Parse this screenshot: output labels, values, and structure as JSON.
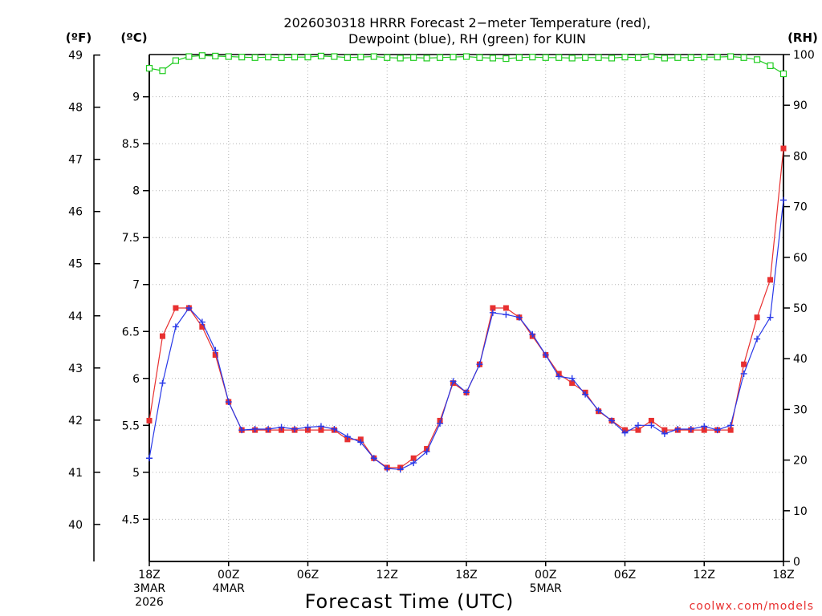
{
  "chart_data": {
    "type": "line",
    "title_lines": [
      "2026030318 HRRR Forecast 2−meter Temperature (red),",
      "Dewpoint (blue), RH (green) for KUIN"
    ],
    "xlabel": "Forecast Time (UTC)",
    "credit": "coolwx.com/models",
    "unit_labels": {
      "fahrenheit": "(ºF)",
      "celsius": "(ºC)",
      "rh": "(RH)"
    },
    "x_range_hours": [
      0,
      48
    ],
    "x_ticks": [
      {
        "hour": 0,
        "lines": [
          "18Z",
          "3MAR",
          "2026"
        ]
      },
      {
        "hour": 6,
        "lines": [
          "00Z",
          "4MAR"
        ]
      },
      {
        "hour": 12,
        "lines": [
          "06Z"
        ]
      },
      {
        "hour": 18,
        "lines": [
          "12Z"
        ]
      },
      {
        "hour": 24,
        "lines": [
          "18Z"
        ]
      },
      {
        "hour": 30,
        "lines": [
          "00Z",
          "5MAR"
        ]
      },
      {
        "hour": 36,
        "lines": [
          "06Z"
        ]
      },
      {
        "hour": 42,
        "lines": [
          "12Z"
        ]
      },
      {
        "hour": 48,
        "lines": [
          "18Z"
        ]
      }
    ],
    "celsius_axis": {
      "range": [
        4.05,
        9.45
      ],
      "ticks": [
        "4.5",
        "5",
        "5.5",
        "6",
        "6.5",
        "7",
        "7.5",
        "8",
        "8.5",
        "9"
      ]
    },
    "fahrenheit_axis": {
      "range": [
        39.29,
        49.01
      ],
      "ticks": [
        "40",
        "41",
        "42",
        "43",
        "44",
        "45",
        "46",
        "47",
        "48",
        "49"
      ]
    },
    "rh_axis": {
      "range": [
        0,
        100
      ],
      "ticks": [
        "0",
        "10",
        "20",
        "30",
        "40",
        "50",
        "60",
        "70",
        "80",
        "90",
        "100"
      ]
    },
    "grid": true,
    "series": [
      {
        "name": "Temperature",
        "color": "#e83030",
        "marker": "filled-square",
        "axis": "celsius",
        "values": [
          5.55,
          6.45,
          6.75,
          6.75,
          6.55,
          6.25,
          5.75,
          5.45,
          5.45,
          5.45,
          5.45,
          5.45,
          5.45,
          5.45,
          5.45,
          5.35,
          5.35,
          5.15,
          5.05,
          5.05,
          5.15,
          5.25,
          5.55,
          5.95,
          5.85,
          6.15,
          6.75,
          6.75,
          6.65,
          6.45,
          6.25,
          6.05,
          5.95,
          5.85,
          5.65,
          5.55,
          5.45,
          5.45,
          5.55,
          5.45,
          5.45,
          5.45,
          5.45,
          5.45,
          5.45,
          6.15,
          6.65,
          7.05,
          8.45
        ]
      },
      {
        "name": "Dewpoint",
        "color": "#2838e8",
        "marker": "plus",
        "axis": "celsius",
        "values": [
          5.15,
          5.95,
          6.55,
          6.75,
          6.6,
          6.3,
          5.75,
          5.45,
          5.46,
          5.46,
          5.48,
          5.46,
          5.48,
          5.49,
          5.46,
          5.38,
          5.32,
          5.15,
          5.04,
          5.03,
          5.1,
          5.22,
          5.52,
          5.97,
          5.85,
          6.15,
          6.7,
          6.68,
          6.65,
          6.47,
          6.25,
          6.02,
          6.0,
          5.83,
          5.66,
          5.55,
          5.42,
          5.5,
          5.5,
          5.41,
          5.46,
          5.46,
          5.49,
          5.45,
          5.5,
          6.05,
          6.42,
          6.65,
          7.9
        ]
      },
      {
        "name": "RH",
        "color": "#20cc20",
        "marker": "open-square",
        "axis": "rh",
        "values": [
          97.3,
          96.8,
          98.8,
          99.6,
          99.8,
          99.7,
          99.6,
          99.5,
          99.4,
          99.5,
          99.4,
          99.5,
          99.5,
          99.7,
          99.6,
          99.4,
          99.5,
          99.6,
          99.4,
          99.3,
          99.4,
          99.3,
          99.4,
          99.5,
          99.6,
          99.4,
          99.3,
          99.2,
          99.4,
          99.5,
          99.4,
          99.4,
          99.3,
          99.4,
          99.4,
          99.3,
          99.5,
          99.4,
          99.6,
          99.3,
          99.4,
          99.4,
          99.5,
          99.5,
          99.6,
          99.4,
          99.0,
          97.8,
          96.2
        ]
      }
    ]
  }
}
